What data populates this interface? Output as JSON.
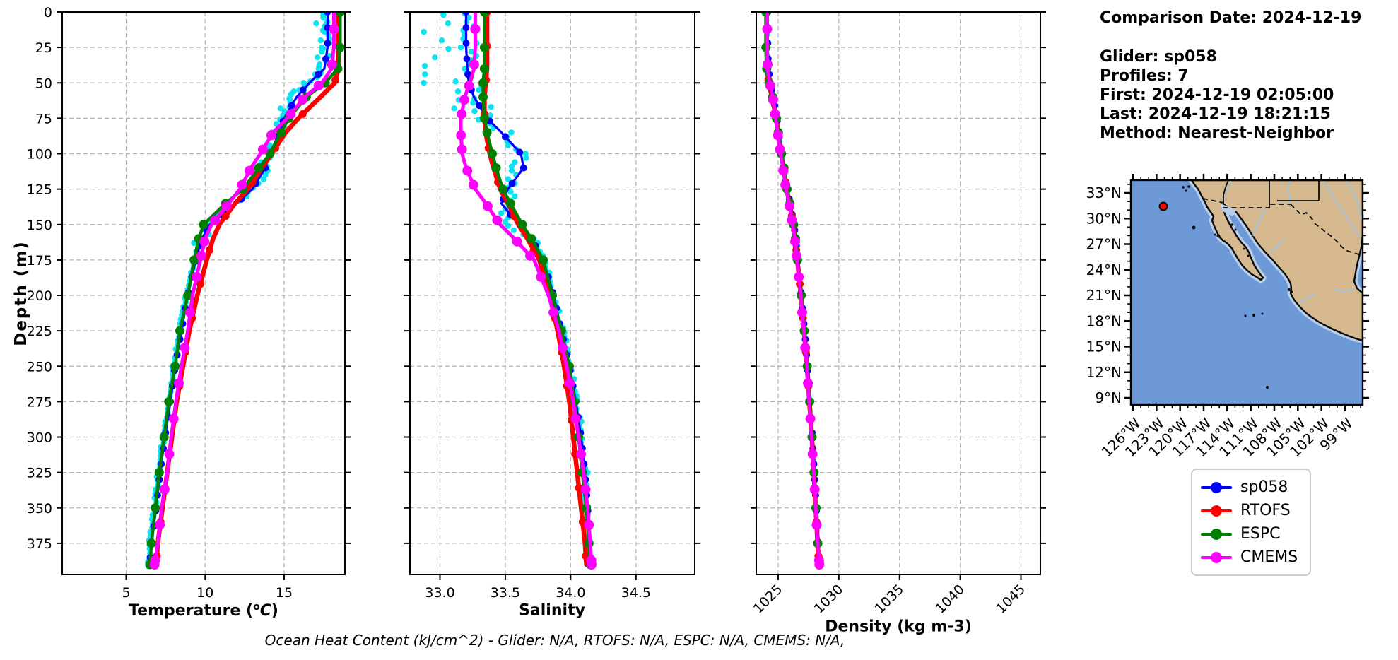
{
  "info_panel": {
    "comparison_date": "Comparison Date: 2024-12-19",
    "glider": "Glider: sp058",
    "profiles": "Profiles: 7",
    "first": "First: 2024-12-19 02:05:00",
    "last": "Last: 2024-12-19 18:21:15",
    "method": "Method: Nearest-Neighbor"
  },
  "annotation": "Ocean Heat Content (kJ/cm^2) - Glider: N/A,  RTOFS: N/A,  ESPC: N/A,  CMEMS: N/A,",
  "legend": {
    "items": [
      {
        "label": "sp058",
        "color": "#0000ff"
      },
      {
        "label": "RTOFS",
        "color": "#ff0000"
      },
      {
        "label": "ESPC",
        "color": "#008000"
      },
      {
        "label": "CMEMS",
        "color": "#ff00ff"
      }
    ]
  },
  "map": {
    "lat_labels": [
      "33°N",
      "30°N",
      "27°N",
      "24°N",
      "21°N",
      "18°N",
      "15°N",
      "12°N",
      "9°N"
    ],
    "lon_labels": [
      "126°W",
      "123°W",
      "120°W",
      "117°W",
      "114°W",
      "111°W",
      "108°W",
      "105°W",
      "102°W",
      "99°W"
    ],
    "ocean_color": "#6e99d7",
    "land_color": "#d6b98e",
    "shelf_color": "#b9cfe9",
    "river_color": "#9cc3e6",
    "marker_color": "#ff0000",
    "glider_position": {
      "lat": "31.4N",
      "lon": "122W"
    }
  },
  "chart_data": [
    {
      "type": "line",
      "name": "temperature",
      "xlabel_parts": {
        "prefix": "Temperature (",
        "sup": "o",
        "italic": "C",
        "suffix": ")"
      },
      "ylabel": "Depth (m)",
      "xlim": [
        0.95,
        18.85
      ],
      "xticks": [
        5,
        10,
        15
      ],
      "xtick_labels": [
        "5",
        "10",
        "15"
      ],
      "ylim": [
        0,
        397
      ],
      "yticks": [
        0,
        25,
        50,
        75,
        100,
        125,
        150,
        175,
        200,
        225,
        250,
        275,
        300,
        325,
        350,
        375
      ],
      "grid": true,
      "raw_scatter_name": "glider raw profiles",
      "raw_scatter_color": "#00e1ef",
      "depths": [
        0,
        25,
        40,
        50,
        60,
        75,
        85,
        100,
        110,
        125,
        135,
        150,
        160,
        175,
        200,
        225,
        250,
        275,
        300,
        325,
        350,
        375,
        390
      ],
      "series": [
        {
          "name": "sp058",
          "color": "#0000ff",
          "values": [
            17.75,
            17.75,
            17.55,
            16.6,
            15.8,
            15.0,
            14.7,
            14.1,
            13.8,
            13.0,
            12.0,
            10.3,
            9.8,
            9.4,
            8.9,
            8.5,
            8.1,
            7.8,
            7.45,
            7.15,
            6.9,
            6.6,
            6.5
          ]
        },
        {
          "name": "RTOFS",
          "color": "#ff0000",
          "values": [
            18.45,
            18.45,
            18.45,
            18.2,
            17.3,
            15.9,
            15.1,
            14.2,
            13.6,
            12.7,
            11.9,
            10.9,
            10.5,
            10.1,
            9.5,
            9.0,
            8.6,
            8.2,
            7.9,
            7.6,
            7.3,
            7.0,
            6.9
          ]
        },
        {
          "name": "ESPC",
          "color": "#008000",
          "values": [
            18.55,
            18.55,
            18.4,
            17.6,
            16.4,
            15.3,
            14.8,
            14.1,
            13.4,
            12.4,
            11.3,
            9.9,
            9.6,
            9.3,
            8.9,
            8.4,
            8.1,
            7.7,
            7.4,
            7.1,
            6.85,
            6.6,
            6.5
          ]
        },
        {
          "name": "CMEMS",
          "color": "#ff00ff",
          "values": [
            18.15,
            18.15,
            18.0,
            17.4,
            16.3,
            15.2,
            14.3,
            13.5,
            12.9,
            12.2,
            11.5,
            10.4,
            10.0,
            9.7,
            9.2,
            8.9,
            8.5,
            8.15,
            7.85,
            7.6,
            7.25,
            7.0,
            6.8
          ]
        }
      ]
    },
    {
      "type": "line",
      "name": "salinity",
      "xlabel": "Salinity",
      "xlim": [
        32.77,
        34.95
      ],
      "xticks": [
        33.0,
        33.5,
        34.0,
        34.5
      ],
      "xtick_labels": [
        "33.0",
        "33.5",
        "34.0",
        "34.5"
      ],
      "ylim": [
        0,
        397
      ],
      "yticks": [
        0,
        25,
        50,
        75,
        100,
        125,
        150,
        175,
        200,
        225,
        250,
        275,
        300,
        325,
        350,
        375
      ],
      "grid": true,
      "raw_scatter_name": "glider raw profiles",
      "raw_scatter_color": "#00e1ef",
      "depths": [
        0,
        25,
        40,
        50,
        60,
        75,
        85,
        100,
        110,
        125,
        135,
        150,
        160,
        175,
        200,
        225,
        250,
        275,
        300,
        325,
        350,
        375,
        390
      ],
      "series": [
        {
          "name": "sp058",
          "color": "#0000ff",
          "values": [
            33.2,
            33.2,
            33.21,
            33.22,
            33.26,
            33.36,
            33.47,
            33.62,
            33.64,
            33.52,
            33.47,
            33.6,
            33.7,
            33.79,
            33.87,
            33.93,
            33.99,
            34.04,
            34.08,
            34.11,
            34.13,
            34.14,
            34.15
          ]
        },
        {
          "name": "RTOFS",
          "color": "#ff0000",
          "values": [
            33.36,
            33.36,
            33.36,
            33.35,
            33.34,
            33.34,
            33.35,
            33.38,
            33.41,
            33.46,
            33.52,
            33.6,
            33.67,
            33.76,
            33.84,
            33.9,
            33.95,
            33.99,
            34.02,
            34.05,
            34.08,
            34.11,
            34.12
          ]
        },
        {
          "name": "ESPC",
          "color": "#008000",
          "values": [
            33.34,
            33.34,
            33.34,
            33.33,
            33.33,
            33.34,
            33.36,
            33.4,
            33.43,
            33.48,
            33.54,
            33.63,
            33.7,
            33.79,
            33.86,
            33.93,
            33.99,
            34.03,
            34.06,
            34.09,
            34.12,
            34.14,
            34.15
          ]
        },
        {
          "name": "CMEMS",
          "color": "#ff00ff",
          "values": [
            33.27,
            33.27,
            33.26,
            33.23,
            33.19,
            33.16,
            33.16,
            33.17,
            33.2,
            33.27,
            33.35,
            33.46,
            33.57,
            33.72,
            33.83,
            33.91,
            33.97,
            34.02,
            34.06,
            34.1,
            34.13,
            34.15,
            34.16
          ]
        }
      ]
    },
    {
      "type": "line",
      "name": "density",
      "xlabel": "Density (kg m-3)",
      "xlim": [
        1023.2,
        1046.6
      ],
      "xticks": [
        1025,
        1030,
        1035,
        1040,
        1045
      ],
      "xtick_labels": [
        "1025",
        "1030",
        "1035",
        "1040",
        "1045"
      ],
      "rotate_xticks": true,
      "ylim": [
        0,
        397
      ],
      "yticks": [
        0,
        25,
        50,
        75,
        100,
        125,
        150,
        175,
        200,
        225,
        250,
        275,
        300,
        325,
        350,
        375
      ],
      "grid": true,
      "raw_scatter_name": "glider raw profiles",
      "raw_scatter_color": "#00e1ef",
      "depths": [
        0,
        25,
        40,
        50,
        60,
        75,
        85,
        100,
        110,
        125,
        135,
        150,
        160,
        175,
        200,
        225,
        250,
        275,
        300,
        325,
        350,
        375,
        390
      ],
      "series": [
        {
          "name": "sp058",
          "color": "#0000ff",
          "values": [
            1024.15,
            1024.15,
            1024.2,
            1024.35,
            1024.6,
            1024.9,
            1025.05,
            1025.3,
            1025.5,
            1025.75,
            1026.0,
            1026.3,
            1026.45,
            1026.62,
            1026.92,
            1027.18,
            1027.42,
            1027.63,
            1027.82,
            1027.98,
            1028.14,
            1028.3,
            1028.42
          ]
        },
        {
          "name": "RTOFS",
          "color": "#ff0000",
          "values": [
            1024.05,
            1024.05,
            1024.1,
            1024.22,
            1024.5,
            1024.85,
            1025.0,
            1025.25,
            1025.45,
            1025.7,
            1025.95,
            1026.25,
            1026.4,
            1026.58,
            1026.88,
            1027.14,
            1027.38,
            1027.58,
            1027.78,
            1027.94,
            1028.1,
            1028.25,
            1028.36
          ]
        },
        {
          "name": "ESPC",
          "color": "#008000",
          "values": [
            1024.0,
            1024.0,
            1024.06,
            1024.26,
            1024.55,
            1024.86,
            1025.02,
            1025.28,
            1025.48,
            1025.73,
            1025.98,
            1026.28,
            1026.43,
            1026.6,
            1026.9,
            1027.15,
            1027.4,
            1027.6,
            1027.8,
            1027.96,
            1028.12,
            1028.27,
            1028.38
          ]
        },
        {
          "name": "CMEMS",
          "color": "#ff00ff",
          "values": [
            1024.1,
            1024.1,
            1024.14,
            1024.3,
            1024.55,
            1024.8,
            1024.95,
            1025.2,
            1025.4,
            1025.65,
            1025.9,
            1026.2,
            1026.38,
            1026.56,
            1026.86,
            1027.12,
            1027.36,
            1027.56,
            1027.76,
            1027.93,
            1028.1,
            1028.26,
            1028.4
          ]
        }
      ]
    }
  ]
}
